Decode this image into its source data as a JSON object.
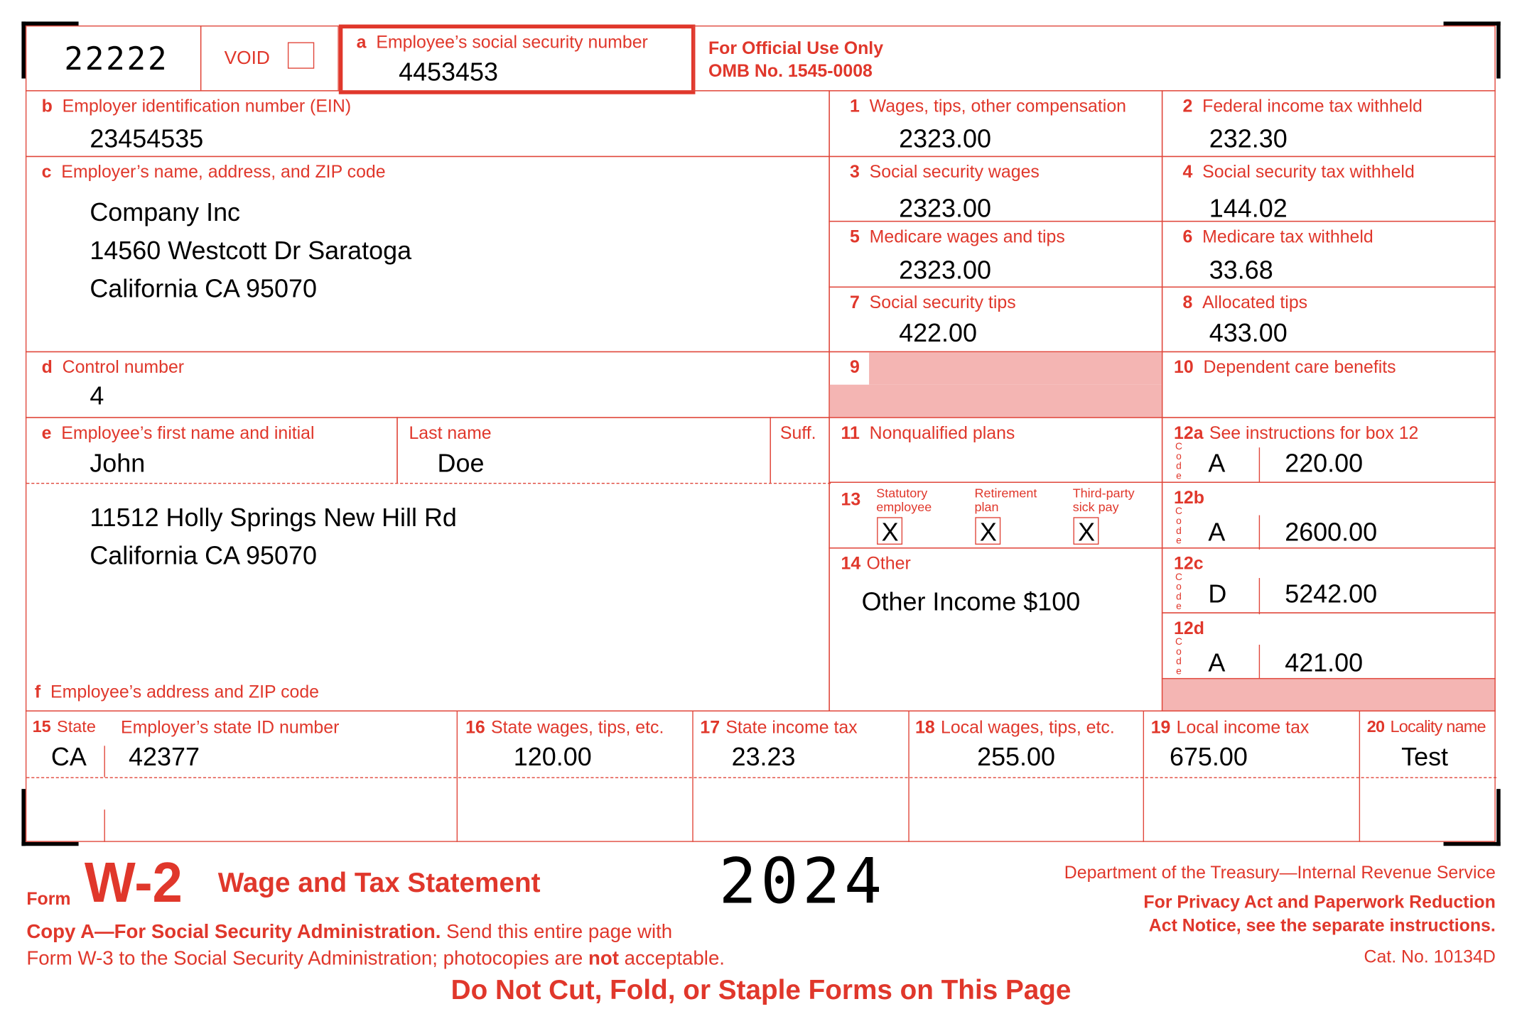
{
  "form_code": "22222",
  "void_label": "VOID",
  "void_checked": false,
  "box_a": {
    "letter": "a",
    "label": "Employee’s social security number",
    "value": "4453453"
  },
  "official_use": {
    "line1": "For Official Use Only",
    "line2": "OMB No. 1545-0008"
  },
  "box_b": {
    "letter": "b",
    "label": "Employer identification number (EIN)",
    "value": "23454535"
  },
  "box_c": {
    "letter": "c",
    "label": "Employer’s name, address, and ZIP code",
    "lines": [
      "Company Inc",
      "14560 Westcott Dr Saratoga",
      "California CA 95070"
    ]
  },
  "box_d": {
    "letter": "d",
    "label": "Control number",
    "value": "4"
  },
  "box_e": {
    "letter": "e",
    "label": "Employee’s first name and initial",
    "first_name": "John",
    "last_label": "Last name",
    "last_name": "Doe",
    "suff_label": "Suff."
  },
  "employee_address": {
    "lines": [
      "11512 Holly Springs New Hill Rd",
      "California CA 95070"
    ]
  },
  "box_f": {
    "letter": "f",
    "label": "Employee’s address and ZIP code"
  },
  "boxes": [
    {
      "num": "1",
      "label": "Wages, tips, other compensation",
      "value": "2323.00"
    },
    {
      "num": "2",
      "label": "Federal income tax withheld",
      "value": "232.30"
    },
    {
      "num": "3",
      "label": "Social security wages",
      "value": "2323.00"
    },
    {
      "num": "4",
      "label": "Social security tax withheld",
      "value": "144.02"
    },
    {
      "num": "5",
      "label": "Medicare wages and tips",
      "value": "2323.00"
    },
    {
      "num": "6",
      "label": "Medicare tax withheld",
      "value": "33.68"
    },
    {
      "num": "7",
      "label": "Social security tips",
      "value": "422.00"
    },
    {
      "num": "8",
      "label": "Allocated tips",
      "value": "433.00"
    },
    {
      "num": "9",
      "label": "",
      "value": ""
    },
    {
      "num": "10",
      "label": "Dependent care benefits",
      "value": ""
    },
    {
      "num": "11",
      "label": "Nonqualified plans",
      "value": ""
    }
  ],
  "box_12": {
    "label": "See instructions for box 12",
    "code_label": "Code",
    "entries": [
      {
        "id": "12a",
        "code": "A",
        "amount": "220.00"
      },
      {
        "id": "12b",
        "code": "A",
        "amount": "2600.00"
      },
      {
        "id": "12c",
        "code": "D",
        "amount": "5242.00"
      },
      {
        "id": "12d",
        "code": "A",
        "amount": "421.00"
      }
    ]
  },
  "box_13": {
    "num": "13",
    "checks": [
      {
        "line1": "Statutory",
        "line2": "employee",
        "mark": "X",
        "checked": true
      },
      {
        "line1": "Retirement",
        "line2": "plan",
        "mark": "X",
        "checked": true
      },
      {
        "line1": "Third-party",
        "line2": "sick pay",
        "mark": "X",
        "checked": true
      }
    ]
  },
  "box_14": {
    "num": "14",
    "label": "Other",
    "value": "Other Income $100"
  },
  "state_row": {
    "b15": {
      "num": "15",
      "label": "State",
      "value": "CA"
    },
    "state_id": {
      "label": "Employer’s state ID number",
      "value": "42377"
    },
    "b16": {
      "num": "16",
      "label": "State wages, tips, etc.",
      "value": "120.00"
    },
    "b17": {
      "num": "17",
      "label": "State income tax",
      "value": "23.23"
    },
    "b18": {
      "num": "18",
      "label": "Local wages, tips, etc.",
      "value": "255.00"
    },
    "b19": {
      "num": "19",
      "label": "Local income tax",
      "value": "675.00"
    },
    "b20": {
      "num": "20",
      "label": "Locality name",
      "value": "Test"
    }
  },
  "footer": {
    "form_word": "Form",
    "form_name": "W-2",
    "title": "Wage and Tax Statement",
    "year": "2024",
    "dept": "Department of the Treasury—Internal Revenue Service",
    "privacy1": "For Privacy Act and Paperwork Reduction",
    "privacy2": "Act Notice, see the separate instructions.",
    "cat": "Cat. No. 10134D",
    "copy_bold": "Copy A—For Social Security Administration.",
    "copy_rest": " Send this entire page with",
    "copy_line2_a": "Form W-3 to the Social Security Administration; photocopies are ",
    "copy_line2_bold": "not",
    "copy_line2_b": " acceptable.",
    "warning": "Do Not Cut, Fold, or Staple Forms on This Page"
  },
  "colors": {
    "form_red": "#e0372b",
    "shaded": "#f4b5b3"
  }
}
